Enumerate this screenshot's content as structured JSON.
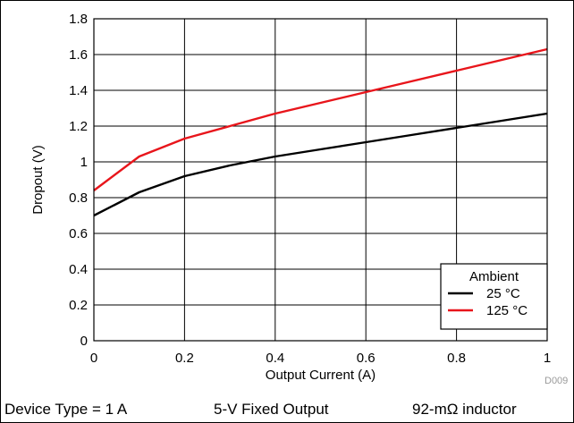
{
  "chart_data": {
    "type": "line",
    "xlabel": "Output Current (A)",
    "ylabel": "Dropout (V)",
    "xlim": [
      0,
      1
    ],
    "ylim": [
      0,
      1.8
    ],
    "x_ticks": [
      "0",
      "0.2",
      "0.4",
      "0.6",
      "0.8",
      "1"
    ],
    "y_ticks": [
      "0",
      "0.2",
      "0.4",
      "0.6",
      "0.8",
      "1",
      "1.2",
      "1.4",
      "1.6",
      "1.8"
    ],
    "grid": true,
    "legend_title": "Ambient",
    "legend_position": "bottom-right",
    "series": [
      {
        "name": "25 °C",
        "color": "#000000",
        "x": [
          0,
          0.1,
          0.2,
          0.3,
          0.4,
          0.5,
          0.6,
          0.7,
          0.8,
          0.9,
          1.0
        ],
        "y": [
          0.7,
          0.83,
          0.92,
          0.98,
          1.03,
          1.07,
          1.11,
          1.15,
          1.19,
          1.23,
          1.27
        ]
      },
      {
        "name": "125 °C",
        "color": "#e8151b",
        "x": [
          0,
          0.1,
          0.2,
          0.3,
          0.4,
          0.5,
          0.6,
          0.7,
          0.8,
          0.9,
          1.0
        ],
        "y": [
          0.84,
          1.03,
          1.13,
          1.2,
          1.27,
          1.33,
          1.39,
          1.45,
          1.51,
          1.57,
          1.63
        ]
      }
    ],
    "figure_code": "D009"
  },
  "caption": {
    "device_type": "Device Type = 1 A",
    "output": "5-V Fixed Output",
    "inductor": "92-mΩ inductor"
  }
}
